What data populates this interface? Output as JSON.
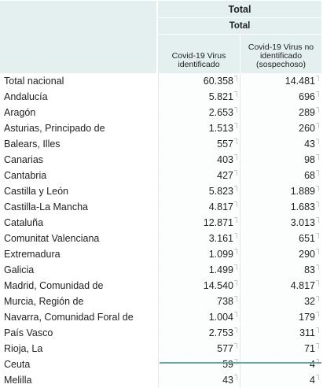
{
  "header": {
    "group_title": "Total",
    "sub_title": "Total",
    "columns": [
      "Covid-19 Virus identificado",
      "Covid-19 Virus no identificado (sospechoso)"
    ]
  },
  "rows": [
    {
      "label": "Total nacional",
      "values": [
        "60.358",
        "14.481"
      ]
    },
    {
      "label": "Andalucía",
      "values": [
        "5.821",
        "696"
      ]
    },
    {
      "label": "Aragón",
      "values": [
        "2.653",
        "289"
      ]
    },
    {
      "label": "Asturias, Principado de",
      "values": [
        "1.513",
        "260"
      ]
    },
    {
      "label": "Balears, Illes",
      "values": [
        "557",
        "43"
      ]
    },
    {
      "label": "Canarias",
      "values": [
        "403",
        "98"
      ]
    },
    {
      "label": "Cantabria",
      "values": [
        "427",
        "68"
      ]
    },
    {
      "label": "Castilla y León",
      "values": [
        "5.823",
        "1.889"
      ]
    },
    {
      "label": "Castilla-La Mancha",
      "values": [
        "4.817",
        "1.683"
      ]
    },
    {
      "label": "Cataluña",
      "values": [
        "12.871",
        "3.013"
      ]
    },
    {
      "label": "Comunitat Valenciana",
      "values": [
        "3.161",
        "651"
      ]
    },
    {
      "label": "Extremadura",
      "values": [
        "1.099",
        "290"
      ]
    },
    {
      "label": "Galicia",
      "values": [
        "1.499",
        "83"
      ]
    },
    {
      "label": "Madrid, Comunidad de",
      "values": [
        "14.540",
        "4.817"
      ]
    },
    {
      "label": "Murcia, Región de",
      "values": [
        "738",
        "32"
      ]
    },
    {
      "label": "Navarra, Comunidad Foral de",
      "values": [
        "1.004",
        "179"
      ]
    },
    {
      "label": "País Vasco",
      "values": [
        "2.753",
        "311"
      ]
    },
    {
      "label": "Rioja, La",
      "values": [
        "577",
        "71"
      ]
    },
    {
      "label": "Ceuta",
      "values": [
        "59",
        "4"
      ]
    },
    {
      "label": "Melilla",
      "values": [
        "43",
        "4"
      ]
    }
  ],
  "colors": {
    "header_bg": "#e4eff0",
    "accent_line": "#6aa79c"
  }
}
